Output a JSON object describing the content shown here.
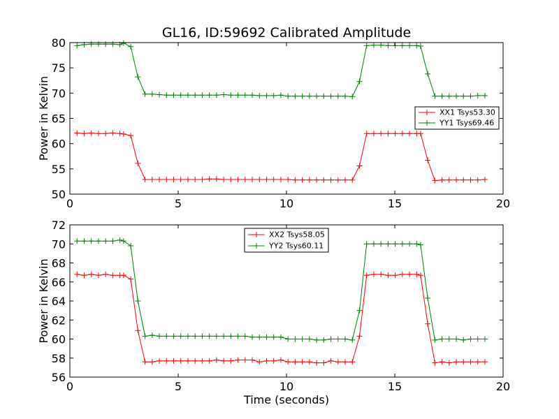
{
  "chart_data": [
    {
      "type": "line",
      "title": "GL16, ID:59692 Calibrated Amplitude",
      "xlabel": "",
      "ylabel": "Power in Kelvin",
      "xlim": [
        0,
        20
      ],
      "ylim": [
        50,
        80
      ],
      "xticks": [
        0,
        5,
        10,
        15,
        20
      ],
      "yticks": [
        50,
        55,
        60,
        65,
        70,
        75,
        80
      ],
      "grid": false,
      "legend_position": "center-right",
      "x": [
        0.33,
        0.66,
        0.99,
        1.32,
        1.65,
        1.98,
        2.31,
        2.48,
        2.81,
        3.14,
        3.47,
        3.8,
        4.13,
        4.46,
        4.79,
        5.12,
        5.45,
        5.78,
        6.11,
        6.44,
        6.77,
        7.1,
        7.43,
        7.76,
        8.09,
        8.42,
        8.75,
        9.08,
        9.41,
        9.74,
        10.07,
        10.4,
        10.73,
        11.06,
        11.39,
        11.72,
        12.05,
        12.38,
        12.71,
        13.04,
        13.37,
        13.7,
        14.03,
        14.36,
        14.69,
        15.02,
        15.35,
        15.68,
        16.01,
        16.19,
        16.52,
        16.85,
        17.18,
        17.51,
        17.84,
        18.17,
        18.5,
        18.83,
        19.16
      ],
      "series": [
        {
          "name": "XX1 Tsys53.30",
          "color": "#ff0000",
          "values": [
            62.1,
            62.0,
            62.1,
            62.0,
            62.0,
            62.1,
            62.0,
            61.9,
            61.6,
            56.1,
            52.9,
            52.9,
            52.9,
            52.9,
            52.9,
            52.9,
            52.9,
            52.9,
            52.9,
            53.0,
            53.0,
            52.9,
            52.9,
            52.9,
            52.9,
            52.9,
            52.9,
            52.9,
            52.9,
            52.9,
            52.9,
            52.8,
            52.8,
            52.8,
            52.8,
            52.8,
            52.8,
            52.8,
            52.8,
            52.8,
            55.6,
            62.0,
            62.0,
            62.0,
            62.0,
            62.0,
            62.0,
            62.0,
            62.0,
            62.0,
            56.7,
            52.7,
            52.8,
            52.8,
            52.8,
            52.8,
            52.8,
            52.8,
            52.9
          ]
        },
        {
          "name": "YY1 Tsys69.46",
          "color": "#008000",
          "values": [
            79.4,
            79.6,
            79.7,
            79.7,
            79.7,
            79.7,
            79.6,
            79.9,
            79.2,
            73.2,
            69.8,
            69.8,
            69.7,
            69.6,
            69.6,
            69.6,
            69.6,
            69.6,
            69.6,
            69.6,
            69.6,
            69.7,
            69.6,
            69.6,
            69.6,
            69.6,
            69.5,
            69.5,
            69.5,
            69.6,
            69.4,
            69.4,
            69.4,
            69.4,
            69.4,
            69.4,
            69.4,
            69.4,
            69.4,
            69.3,
            72.3,
            79.4,
            79.5,
            79.5,
            79.4,
            79.4,
            79.4,
            79.4,
            79.4,
            79.3,
            73.8,
            69.4,
            69.4,
            69.4,
            69.4,
            69.4,
            69.4,
            69.5,
            69.5
          ]
        }
      ]
    },
    {
      "type": "line",
      "title": "",
      "xlabel": "Time (seconds)",
      "ylabel": "Power in Kelvin",
      "xlim": [
        0,
        20
      ],
      "ylim": [
        56,
        72
      ],
      "xticks": [
        0,
        5,
        10,
        15,
        20
      ],
      "yticks": [
        56,
        58,
        60,
        62,
        64,
        66,
        68,
        70,
        72
      ],
      "grid": false,
      "legend_position": "top-center",
      "x": [
        0.33,
        0.66,
        0.99,
        1.32,
        1.65,
        1.98,
        2.31,
        2.48,
        2.81,
        3.14,
        3.47,
        3.8,
        4.13,
        4.46,
        4.79,
        5.12,
        5.45,
        5.78,
        6.11,
        6.44,
        6.77,
        7.1,
        7.43,
        7.76,
        8.09,
        8.42,
        8.75,
        9.08,
        9.41,
        9.74,
        10.07,
        10.4,
        10.73,
        11.06,
        11.39,
        11.72,
        12.05,
        12.38,
        12.71,
        13.04,
        13.37,
        13.7,
        14.03,
        14.36,
        14.69,
        15.02,
        15.35,
        15.68,
        16.01,
        16.19,
        16.52,
        16.85,
        17.18,
        17.51,
        17.84,
        18.17,
        18.5,
        18.83,
        19.16
      ],
      "series": [
        {
          "name": "XX2 Tsys58.05",
          "color": "#ff0000",
          "values": [
            66.8,
            66.7,
            66.8,
            66.7,
            66.8,
            66.7,
            66.7,
            66.7,
            66.3,
            60.9,
            57.6,
            57.6,
            57.7,
            57.7,
            57.7,
            57.7,
            57.7,
            57.7,
            57.7,
            57.7,
            57.8,
            57.7,
            57.7,
            57.8,
            57.8,
            57.8,
            57.6,
            57.7,
            57.7,
            57.8,
            57.6,
            57.6,
            57.6,
            57.6,
            57.5,
            57.5,
            57.7,
            57.6,
            57.6,
            57.6,
            60.3,
            66.7,
            66.8,
            66.8,
            66.7,
            66.7,
            66.8,
            66.8,
            66.8,
            66.7,
            61.6,
            57.5,
            57.6,
            57.5,
            57.6,
            57.6,
            57.6,
            57.6,
            57.6
          ]
        },
        {
          "name": "YY2 Tsys60.11",
          "color": "#008000",
          "values": [
            70.3,
            70.3,
            70.3,
            70.3,
            70.3,
            70.3,
            70.4,
            70.3,
            69.8,
            64.0,
            60.3,
            60.4,
            60.3,
            60.3,
            60.3,
            60.3,
            60.3,
            60.3,
            60.3,
            60.3,
            60.3,
            60.3,
            60.3,
            60.3,
            60.3,
            60.2,
            60.2,
            60.2,
            60.2,
            60.2,
            60.0,
            60.0,
            60.0,
            60.0,
            59.9,
            59.9,
            60.0,
            60.0,
            60.0,
            59.9,
            63.0,
            70.0,
            70.0,
            70.0,
            70.0,
            70.0,
            70.0,
            70.0,
            70.0,
            69.9,
            64.3,
            59.9,
            60.0,
            60.0,
            60.0,
            59.9,
            60.0,
            60.0,
            60.0
          ]
        }
      ]
    }
  ]
}
